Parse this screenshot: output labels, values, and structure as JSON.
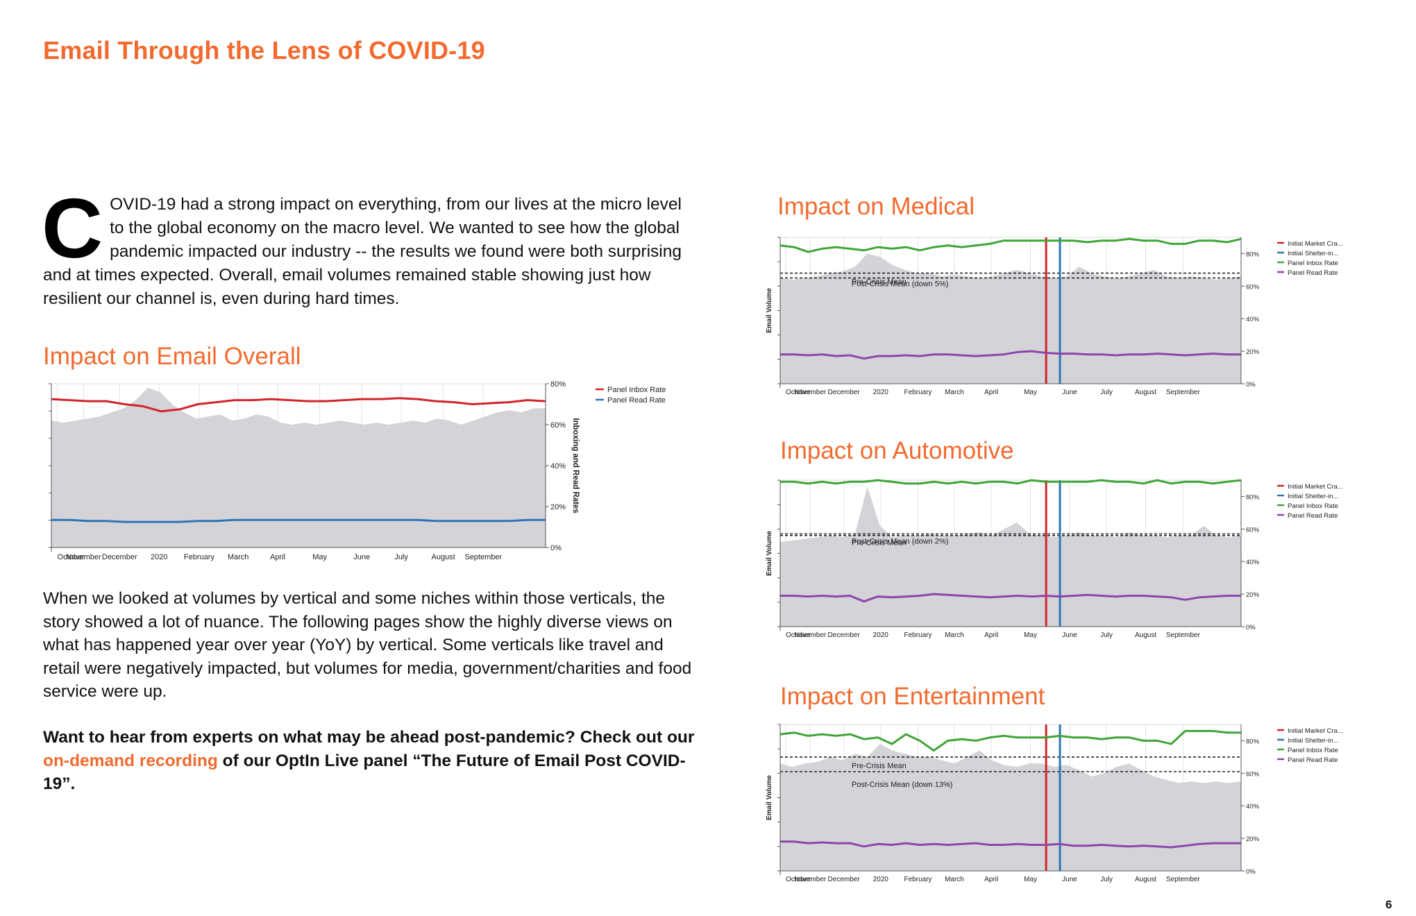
{
  "page": {
    "title": "Email Through the Lens of COVID-19",
    "intro_dropcap": "C",
    "intro_text": "OVID-19 had a strong impact on everything, from our lives at the micro level to the global economy on the macro level. We wanted to see how the global pandemic impacted our industry -- the results we found were both surprising and at times expected. Overall, email volumes remained stable showing just how resilient our channel is, even during hard times.",
    "body_text": "When we looked at volumes by vertical and some niches within those verticals, the story showed a lot of nuance. The following pages show the highly diverse views on what has happened year over year (YoY) by vertical. Some verticals like travel and retail were negatively impacted, but volumes for media, government/charities and food service were up.",
    "cta_before": "Want to hear from experts on what may be ahead post-pandemic? Check out our ",
    "cta_link": "on-demand recording",
    "cta_after": " of our OptIn Live panel “The Future of Email Post COVID-19”.",
    "page_number": "6"
  },
  "colors": {
    "accent": "#f26a2e",
    "volume_area": "#d3d3d8",
    "inbox_red": "#d2232a",
    "read_blue": "#2f74b5",
    "inbox_green": "#3fa536",
    "read_purple": "#8e44ad",
    "market_crash_line": "#d2232a",
    "shelter_line": "#2f74b5"
  },
  "chart_data": [
    {
      "type": "area",
      "title": "Impact on Email Overall",
      "ylabel_right": "Inboxing and Read Rates",
      "x_ticks": [
        "October",
        "November",
        "December",
        "2020",
        "February",
        "March",
        "April",
        "May",
        "June",
        "July",
        "August",
        "September"
      ],
      "y_ticks_right": [
        "0%",
        "20%",
        "40%",
        "60%",
        "80%"
      ],
      "ylim_right": [
        0,
        80
      ],
      "legend": [
        "Panel Inbox Rate",
        "Panel Read Rate"
      ],
      "legend_placement": "right",
      "series": [
        {
          "name": "Panel Inbox Rate",
          "color_key": "inbox_red",
          "values": [
            72.5,
            72,
            71.5,
            71.5,
            70,
            69,
            66.5,
            67.5,
            70,
            71,
            72,
            72,
            72.5,
            72,
            71.5,
            71.5,
            72,
            72.5,
            72.5,
            73,
            72.5,
            71.5,
            71,
            70,
            70.5,
            71,
            72,
            71.5
          ]
        },
        {
          "name": "Panel Read Rate",
          "color_key": "read_blue",
          "values": [
            13.5,
            13.5,
            13,
            13,
            12.5,
            12.5,
            12.5,
            12.5,
            13,
            13,
            13.5,
            13.5,
            13.5,
            13.5,
            13.5,
            13.5,
            13.5,
            13.5,
            13.5,
            13.5,
            13.5,
            13,
            13,
            13,
            13,
            13,
            13.5,
            13.5
          ]
        },
        {
          "name": "",
          "type": "area",
          "color_key": "volume_area",
          "values": [
            62,
            61,
            62,
            63,
            64,
            66,
            68,
            72,
            78,
            76,
            70,
            66,
            63,
            64,
            65,
            62,
            63,
            65,
            64,
            61,
            60,
            61,
            60,
            61,
            62,
            61,
            60,
            61,
            60,
            61,
            62,
            61,
            63,
            62,
            60,
            62,
            64,
            66,
            67,
            66,
            68,
            68
          ]
        }
      ]
    },
    {
      "type": "area",
      "title": "Impact on Medical",
      "ylabel": "Email Volume",
      "x_ticks": [
        "October",
        "November",
        "December",
        "2020",
        "February",
        "March",
        "April",
        "May",
        "June",
        "July",
        "August",
        "September"
      ],
      "y_ticks_right": [
        "0%",
        "20%",
        "40%",
        "60%",
        "80%"
      ],
      "ylim_right": [
        0,
        90
      ],
      "legend": [
        "Initial Market Cra...",
        "Initial Shelter-in...",
        "Panel Inbox Rate",
        "Panel Read Rate"
      ],
      "legend_placement": "right",
      "annotations": [
        "Pre-Crisis Mean",
        "Post-Crisis Mean (down 5%)"
      ],
      "pre_mean": 68,
      "post_mean": 65,
      "events": {
        "market_crash": 0.577,
        "shelter": 0.607
      },
      "series": [
        {
          "name": "Panel Inbox Rate",
          "color_key": "inbox_green",
          "values": [
            85,
            84,
            81,
            83,
            84,
            83,
            82,
            84,
            83,
            84,
            82,
            84,
            85,
            84,
            85,
            86,
            88,
            88,
            88,
            88,
            88,
            88,
            87,
            88,
            88,
            89,
            88,
            88,
            86,
            86,
            88,
            88,
            87,
            89
          ]
        },
        {
          "name": "Panel Read Rate",
          "color_key": "read_purple",
          "values": [
            18,
            18,
            17.5,
            18,
            17,
            17.5,
            15.5,
            17,
            17,
            17.5,
            17,
            18,
            18,
            17.5,
            17,
            17.5,
            18,
            19.5,
            20,
            19,
            18.5,
            18.5,
            18,
            18,
            17.5,
            18,
            18,
            18.5,
            18,
            17.5,
            18,
            18.5,
            18,
            18
          ]
        },
        {
          "name": "",
          "type": "area",
          "color_key": "volume_area",
          "values": [
            65,
            64,
            65,
            66,
            68,
            69,
            72,
            80,
            78,
            73,
            70,
            68,
            68,
            66,
            67,
            66,
            65,
            66,
            68,
            70,
            68,
            66,
            65,
            66,
            72,
            68,
            66,
            65,
            66,
            68,
            70,
            66,
            65,
            66,
            65,
            64,
            65,
            66
          ]
        }
      ]
    },
    {
      "type": "area",
      "title": "Impact on Automotive",
      "ylabel": "Email Volume",
      "x_ticks": [
        "October",
        "November",
        "December",
        "2020",
        "February",
        "March",
        "April",
        "May",
        "June",
        "July",
        "August",
        "September"
      ],
      "y_ticks_right": [
        "0%",
        "20%",
        "40%",
        "60%",
        "80%"
      ],
      "ylim_right": [
        0,
        90
      ],
      "legend": [
        "Initial Market Cra...",
        "Initial Shelter-in...",
        "Panel Inbox Rate",
        "Panel Read Rate"
      ],
      "legend_placement": "right",
      "annotations": [
        "Pre-Crisis Mean",
        "Post-Crisis Mean (down 2%)"
      ],
      "pre_mean": 57,
      "post_mean": 56,
      "events": {
        "market_crash": 0.577,
        "shelter": 0.607
      },
      "series": [
        {
          "name": "Panel Inbox Rate",
          "color_key": "inbox_green",
          "values": [
            89,
            89,
            88,
            89,
            88,
            89,
            89,
            90,
            89,
            88,
            88,
            89,
            88,
            89,
            88,
            89,
            89,
            88,
            90,
            89,
            89,
            89,
            89,
            90,
            89,
            89,
            88,
            90,
            88,
            89,
            89,
            88,
            89,
            90
          ]
        },
        {
          "name": "Panel Read Rate",
          "color_key": "read_purple",
          "values": [
            19,
            19,
            18.5,
            19,
            18.5,
            19,
            15.5,
            18.5,
            18,
            18.5,
            19,
            20,
            19.5,
            19,
            18.5,
            18,
            18.5,
            19,
            18.5,
            19,
            18.5,
            19,
            19.5,
            19,
            18.5,
            19,
            19,
            18.5,
            18,
            16.5,
            18,
            18.5,
            19,
            19
          ]
        },
        {
          "name": "",
          "type": "area",
          "color_key": "volume_area",
          "values": [
            52,
            53,
            54,
            55,
            56,
            55,
            57,
            86,
            62,
            55,
            56,
            56,
            57,
            56,
            56,
            57,
            58,
            56,
            60,
            64,
            57,
            56,
            55,
            56,
            58,
            56,
            56,
            55,
            58,
            56,
            56,
            55,
            56,
            56,
            62,
            56,
            55,
            56
          ]
        }
      ]
    },
    {
      "type": "area",
      "title": "Impact on Entertainment",
      "ylabel": "Email Volume",
      "x_ticks": [
        "October",
        "November",
        "December",
        "2020",
        "February",
        "March",
        "April",
        "May",
        "June",
        "July",
        "August",
        "September"
      ],
      "y_ticks_right": [
        "0%",
        "20%",
        "40%",
        "60%",
        "80%"
      ],
      "ylim_right": [
        0,
        90
      ],
      "legend": [
        "Initial Market Cra...",
        "Initial Shelter-in...",
        "Panel Inbox Rate",
        "Panel Read Rate"
      ],
      "legend_placement": "right",
      "annotations": [
        "Pre-Crisis Mean",
        "Post-Crisis Mean (down 13%)"
      ],
      "pre_mean": 70,
      "post_mean": 61,
      "events": {
        "market_crash": 0.577,
        "shelter": 0.607
      },
      "series": [
        {
          "name": "Panel Inbox Rate",
          "color_key": "inbox_green",
          "values": [
            84,
            85,
            83,
            84,
            83,
            84,
            81,
            82,
            78,
            84,
            80,
            74,
            80,
            81,
            80,
            82,
            83,
            82,
            82,
            82,
            83,
            82,
            82,
            81,
            82,
            82,
            80,
            80,
            78,
            86,
            86,
            86,
            85,
            85
          ]
        },
        {
          "name": "Panel Read Rate",
          "color_key": "read_purple",
          "values": [
            18,
            18,
            17,
            17.5,
            17,
            17,
            15,
            16.5,
            16,
            17,
            16,
            16.5,
            16,
            16.5,
            17,
            16,
            16,
            16.5,
            16,
            16,
            16.5,
            15.5,
            15.5,
            16,
            15.5,
            15,
            15.5,
            15,
            14.5,
            15.5,
            16.5,
            17,
            17,
            17
          ]
        },
        {
          "name": "",
          "type": "area",
          "color_key": "volume_area",
          "values": [
            66,
            64,
            66,
            67,
            70,
            68,
            72,
            70,
            78,
            74,
            72,
            70,
            70,
            68,
            66,
            70,
            74,
            68,
            65,
            64,
            66,
            66,
            64,
            65,
            62,
            58,
            60,
            64,
            66,
            62,
            58,
            56,
            54,
            55,
            54,
            55,
            54,
            55
          ]
        }
      ]
    }
  ]
}
